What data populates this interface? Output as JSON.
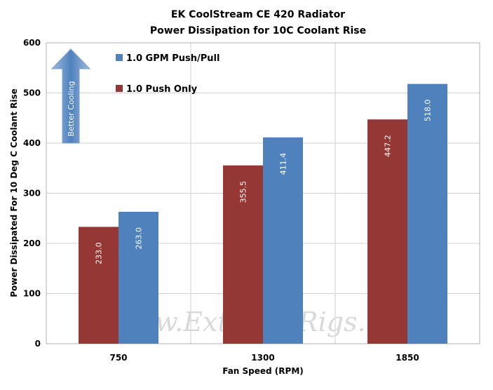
{
  "chart_data": {
    "type": "bar",
    "title": "EK CoolStream  CE 420 Radiator",
    "subtitle": "Power Dissipation  for 10C Coolant  Rise",
    "xlabel": "Fan Speed (RPM)",
    "ylabel": "Power Dissipated For 10 Deg C Coolant Rise",
    "categories": [
      "750",
      "1300",
      "1850"
    ],
    "series": [
      {
        "name": "1.0 Push Only",
        "values": [
          233.0,
          355.5,
          447.2
        ],
        "color": "#953735",
        "labels": [
          "233.0",
          "355.5",
          "447.2"
        ]
      },
      {
        "name": "1.0 GPM Push/Pull",
        "values": [
          263.0,
          411.4,
          518.0
        ],
        "color": "#4f81bd",
        "labels": [
          "263.0",
          "411.4",
          "518.0"
        ]
      }
    ],
    "ylim": [
      0,
      600
    ],
    "yticks": [
      "0",
      "100",
      "200",
      "300",
      "400",
      "500",
      "600"
    ],
    "grid": true,
    "legend": "top-left"
  },
  "annotation": {
    "arrow_text": "Better Cooling",
    "arrow_color": "#4f81bd"
  },
  "watermark": "www.ExtremeRigs.net"
}
